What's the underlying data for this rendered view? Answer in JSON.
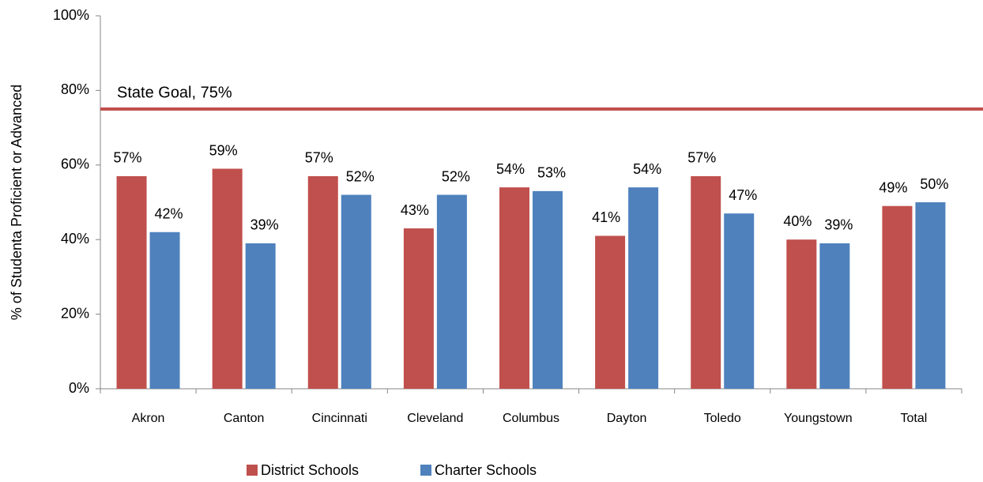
{
  "chart_data": {
    "type": "bar",
    "y_axis_label": "% of Studenta Proficient or Advanced",
    "categories": [
      "Akron",
      "Canton",
      "Cincinnati",
      "Cleveland",
      "Columbus",
      "Dayton",
      "Toledo",
      "Youngstown",
      "Total"
    ],
    "series": [
      {
        "name": "District Schools",
        "color": "#c0504d",
        "values": [
          57,
          59,
          57,
          43,
          54,
          41,
          57,
          40,
          49
        ],
        "value_labels": [
          "57%",
          "59%",
          "57%",
          "43%",
          "54%",
          "41%",
          "57%",
          "40%",
          "49%"
        ]
      },
      {
        "name": "Charter Schools",
        "color": "#4f81bd",
        "values": [
          42,
          39,
          52,
          52,
          53,
          54,
          47,
          39,
          50
        ],
        "value_labels": [
          "42%",
          "39%",
          "52%",
          "52%",
          "53%",
          "54%",
          "47%",
          "39%",
          "50%"
        ]
      }
    ],
    "ylim": [
      0,
      100
    ],
    "yticks": [
      {
        "value": 0,
        "label": "0%"
      },
      {
        "value": 20,
        "label": "20%"
      },
      {
        "value": 40,
        "label": "40%"
      },
      {
        "value": 60,
        "label": "60%"
      },
      {
        "value": 80,
        "label": "80%"
      },
      {
        "value": 100,
        "label": "100%"
      }
    ],
    "reference_line": {
      "value": 75,
      "label": "State Goal, 75%",
      "color": "#c0504d"
    },
    "legend": "bottom"
  }
}
